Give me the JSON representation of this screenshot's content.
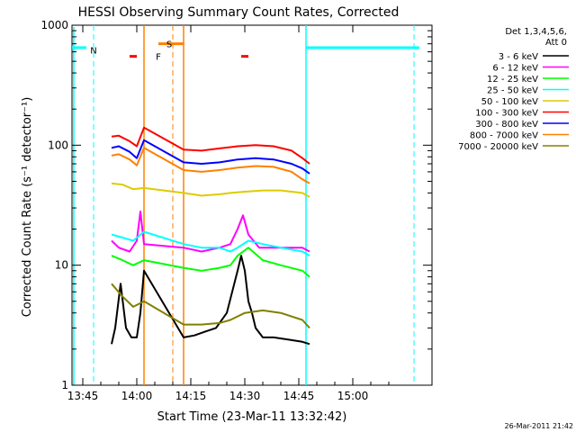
{
  "chart_data": {
    "type": "line",
    "title": "HESSI Observing Summary Count Rates, Corrected",
    "xlabel": "Start Time (23-Mar-11 13:32:42)",
    "ylabel": "Corrected Count Rate (s⁻¹ detector⁻¹)",
    "ylog": true,
    "xlim_min": [
      822,
      922
    ],
    "ylim": [
      1,
      1000
    ],
    "x_ticks": [
      {
        "t": 825,
        "label": "13:45"
      },
      {
        "t": 840,
        "label": "14:00"
      },
      {
        "t": 855,
        "label": "14:15"
      },
      {
        "t": 870,
        "label": "14:30"
      },
      {
        "t": 885,
        "label": "14:45"
      },
      {
        "t": 900,
        "label": "15:00"
      }
    ],
    "y_ticks": [
      {
        "v": 1,
        "label": "1"
      },
      {
        "v": 10,
        "label": "10"
      },
      {
        "v": 100,
        "label": "100"
      },
      {
        "v": 1000,
        "label": "1000"
      }
    ],
    "legend": {
      "placement": "outside-right",
      "header": [
        "Det 1,3,4,5,6,",
        "Att 0"
      ]
    },
    "series": [
      {
        "name": "3 - 6 keV",
        "color": "#000000",
        "x": [
          833,
          834,
          835.5,
          837,
          838.5,
          840,
          841,
          842,
          853,
          856,
          859,
          862,
          865,
          868,
          869,
          870,
          871,
          872,
          873,
          875,
          878,
          882,
          886,
          888
        ],
        "y": [
          2.2,
          3,
          7,
          3,
          2.5,
          2.5,
          4,
          9,
          2.5,
          2.6,
          2.8,
          3,
          4,
          9,
          12,
          9,
          5,
          4,
          3,
          2.5,
          2.5,
          2.4,
          2.3,
          2.2
        ]
      },
      {
        "name": "6 - 12 keV",
        "color": "#ff00ff",
        "x": [
          833,
          835,
          838,
          840,
          841,
          842,
          853,
          858,
          863,
          866,
          868,
          869.5,
          871,
          874,
          880,
          886,
          888
        ],
        "y": [
          16,
          14,
          13,
          16,
          28,
          15,
          14,
          13,
          14,
          15,
          20,
          26,
          18,
          14,
          14,
          14,
          13
        ]
      },
      {
        "name": "12 - 25 keV",
        "color": "#00ff00",
        "x": [
          833,
          836,
          839,
          842,
          853,
          858,
          863,
          866,
          868,
          871,
          875,
          880,
          886,
          888
        ],
        "y": [
          12,
          11,
          10,
          11,
          9.5,
          9,
          9.5,
          10,
          12,
          14,
          11,
          10,
          9,
          8
        ]
      },
      {
        "name": "25 - 50 keV",
        "color": "#00ffff",
        "x": [
          833,
          836,
          839,
          842,
          853,
          858,
          863,
          866,
          868,
          871,
          875,
          880,
          886,
          888
        ],
        "y": [
          18,
          17,
          16,
          19,
          15,
          14,
          14,
          13,
          14,
          16,
          15,
          14,
          13,
          12
        ]
      },
      {
        "name": "50 - 100 keV",
        "color": "#ddcc00",
        "x": [
          833,
          836,
          839,
          842,
          853,
          858,
          863,
          866,
          870,
          875,
          880,
          886,
          888
        ],
        "y": [
          48,
          47,
          43,
          44,
          40,
          38,
          39,
          40,
          41,
          42,
          42,
          40,
          37
        ]
      },
      {
        "name": "100 - 300 keV",
        "color": "#ff0000",
        "x": [
          833,
          835,
          838,
          840,
          842,
          853,
          858,
          863,
          868,
          873,
          878,
          883,
          886,
          888
        ],
        "y": [
          118,
          120,
          108,
          98,
          140,
          92,
          90,
          94,
          98,
          100,
          98,
          90,
          78,
          70
        ]
      },
      {
        "name": "300 - 800 keV",
        "color": "#0000ff",
        "x": [
          833,
          835,
          838,
          840,
          842,
          853,
          858,
          863,
          868,
          873,
          878,
          883,
          886,
          888
        ],
        "y": [
          95,
          98,
          88,
          78,
          110,
          72,
          70,
          72,
          76,
          78,
          76,
          70,
          64,
          58
        ]
      },
      {
        "name": "800 - 7000 keV",
        "color": "#ff8000",
        "x": [
          833,
          835,
          838,
          840,
          842,
          853,
          858,
          863,
          868,
          873,
          878,
          883,
          886,
          888
        ],
        "y": [
          82,
          84,
          76,
          68,
          95,
          62,
          60,
          62,
          65,
          67,
          66,
          60,
          52,
          48
        ]
      },
      {
        "name": "7000 - 20000 keV",
        "color": "#808000",
        "x": [
          833,
          836,
          839,
          842,
          853,
          858,
          863,
          866,
          870,
          875,
          880,
          886,
          888
        ],
        "y": [
          7,
          5.5,
          4.5,
          5,
          3.2,
          3.2,
          3.3,
          3.5,
          4,
          4.2,
          4,
          3.5,
          3
        ]
      }
    ],
    "annotations": [
      {
        "label": "N",
        "color": "#00ffff",
        "x": 828,
        "y": 620
      },
      {
        "label": "S",
        "color": "#ff8000",
        "x": 849,
        "y": 700
      },
      {
        "label": "F",
        "color": "#ff0000",
        "x": 846,
        "y": 550
      }
    ]
  },
  "footer": {
    "timestamp": "26-Mar-2011 21:42"
  }
}
